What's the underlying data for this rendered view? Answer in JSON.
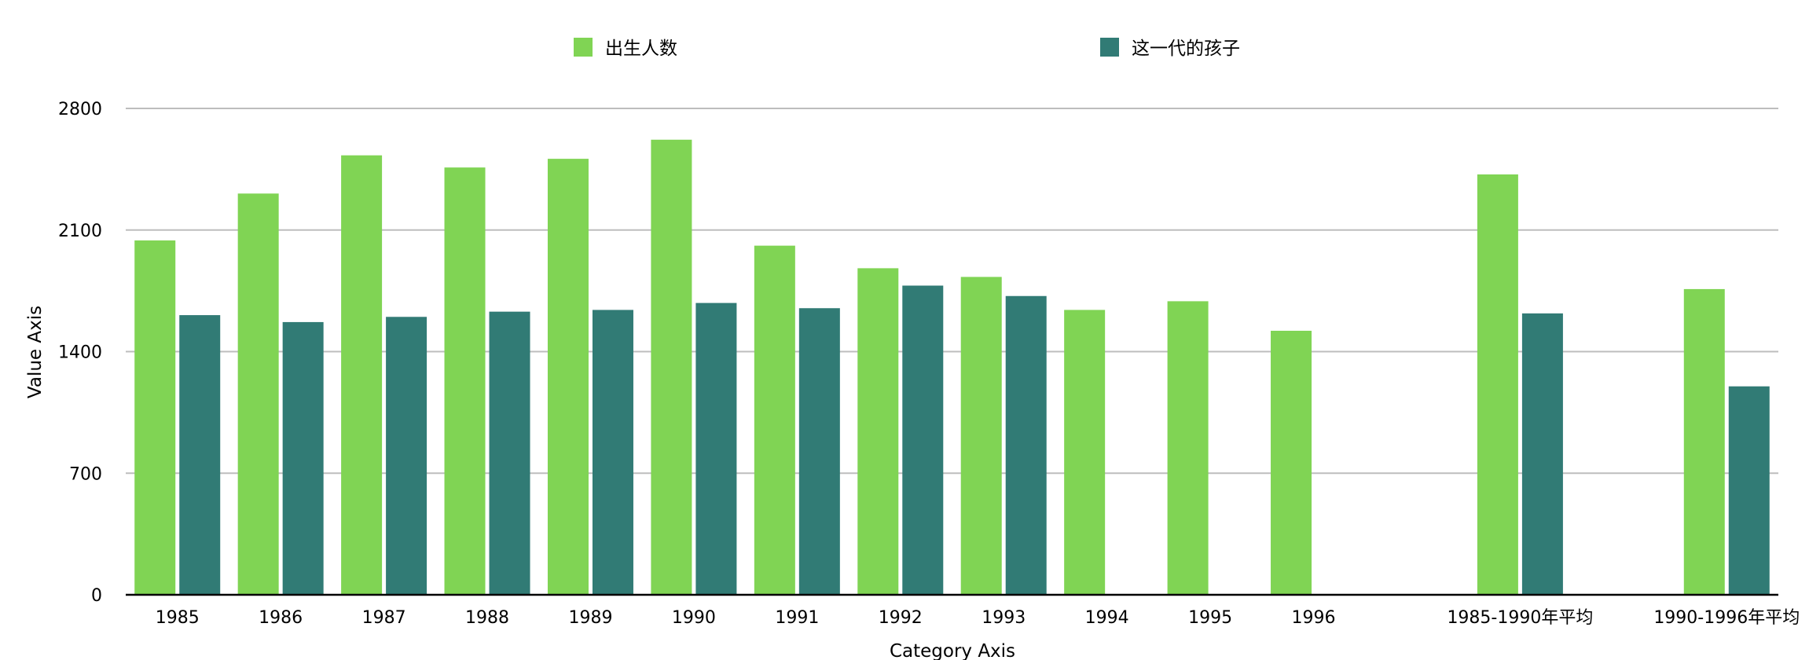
{
  "chart_data": {
    "type": "bar",
    "xlabel": "Category Axis",
    "ylabel": "Value Axis",
    "ylim": [
      0,
      2800
    ],
    "yticks": [
      0,
      700,
      1400,
      2100,
      2800
    ],
    "grid": true,
    "legend_position": "top-center",
    "categories": [
      "1985",
      "1986",
      "1987",
      "1988",
      "1989",
      "1990",
      "1991",
      "1992",
      "1993",
      "1994",
      "1995",
      "1996",
      "",
      "1985-1990年平均",
      "",
      "1990-1996年平均"
    ],
    "series": [
      {
        "name": "出生人数",
        "color": "#80d454",
        "values": [
          2040,
          2310,
          2530,
          2460,
          2510,
          2620,
          2010,
          1880,
          1830,
          1640,
          1690,
          1520,
          null,
          2420,
          null,
          1760
        ]
      },
      {
        "name": "这一代的孩子",
        "color": "#317b75",
        "values": [
          1610,
          1570,
          1600,
          1630,
          1640,
          1680,
          1650,
          1780,
          1720,
          null,
          null,
          null,
          null,
          1620,
          null,
          1200
        ]
      }
    ]
  }
}
